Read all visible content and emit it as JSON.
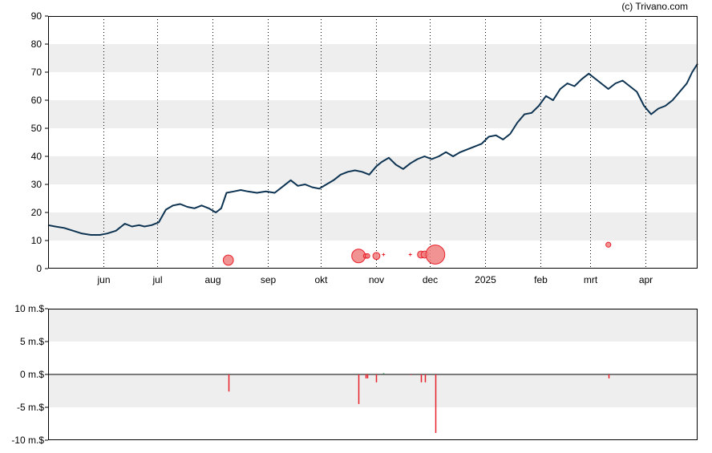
{
  "credit": "(c) Trivano.com",
  "colors": {
    "price_line": "#0d3352",
    "insider_sell": "#e8202a",
    "insider_buy": "#2e8b57",
    "band": "#eeeeee",
    "grid": "#000000",
    "axis": "#000000",
    "bubble_fill": "#f08080",
    "bubble_stroke": "#e8202a"
  },
  "chart_data": [
    {
      "type": "line",
      "title": "",
      "ylim": [
        0,
        90
      ],
      "y_ticks": [
        "0",
        "10",
        "20",
        "30",
        "40",
        "50",
        "60",
        "70",
        "80",
        "90"
      ],
      "x_start": "2024-05-01",
      "x_end": "2025-04-30",
      "month_ticks": [
        {
          "label": "jun",
          "date": "2024-06-01"
        },
        {
          "label": "jul",
          "date": "2024-07-01"
        },
        {
          "label": "aug",
          "date": "2024-08-01"
        },
        {
          "label": "sep",
          "date": "2024-09-01"
        },
        {
          "label": "okt",
          "date": "2024-10-01"
        },
        {
          "label": "nov",
          "date": "2024-11-01"
        },
        {
          "label": "dec",
          "date": "2024-12-01"
        },
        {
          "label": "2025",
          "date": "2025-01-01"
        },
        {
          "label": "feb",
          "date": "2025-02-01"
        },
        {
          "label": "mrt",
          "date": "2025-03-01"
        },
        {
          "label": "apr",
          "date": "2025-04-01"
        }
      ],
      "band_shading": true,
      "series": [
        {
          "x": [
            "2024-05-01",
            "2024-05-05",
            "2024-05-10",
            "2024-05-15",
            "2024-05-20",
            "2024-05-25",
            "2024-05-30",
            "2024-06-03",
            "2024-06-08",
            "2024-06-13",
            "2024-06-17",
            "2024-06-21",
            "2024-06-24",
            "2024-06-28",
            "2024-07-02",
            "2024-07-06",
            "2024-07-10",
            "2024-07-14",
            "2024-07-18",
            "2024-07-22",
            "2024-07-26",
            "2024-07-30",
            "2024-08-03",
            "2024-08-06",
            "2024-08-09",
            "2024-08-13",
            "2024-08-17",
            "2024-08-21",
            "2024-08-26",
            "2024-08-31",
            "2024-09-05",
            "2024-09-10",
            "2024-09-14",
            "2024-09-18",
            "2024-09-22",
            "2024-09-26",
            "2024-09-30",
            "2024-10-04",
            "2024-10-08",
            "2024-10-12",
            "2024-10-16",
            "2024-10-20",
            "2024-10-24",
            "2024-10-28",
            "2024-11-01",
            "2024-11-04",
            "2024-11-08",
            "2024-11-12",
            "2024-11-16",
            "2024-11-20",
            "2024-11-24",
            "2024-11-28",
            "2024-12-02",
            "2024-12-06",
            "2024-12-10",
            "2024-12-14",
            "2024-12-18",
            "2024-12-22",
            "2024-12-26",
            "2024-12-30",
            "2025-01-03",
            "2025-01-07",
            "2025-01-11",
            "2025-01-15",
            "2025-01-19",
            "2025-01-23",
            "2025-01-27",
            "2025-01-31",
            "2025-02-04",
            "2025-02-08",
            "2025-02-12",
            "2025-02-16",
            "2025-02-20",
            "2025-02-24",
            "2025-02-28",
            "2025-03-03",
            "2025-03-07",
            "2025-03-11",
            "2025-03-15",
            "2025-03-19",
            "2025-03-23",
            "2025-03-27",
            "2025-03-31",
            "2025-04-04",
            "2025-04-08",
            "2025-04-12",
            "2025-04-16",
            "2025-04-20",
            "2025-04-24",
            "2025-04-27",
            "2025-04-30"
          ],
          "y": [
            15.5,
            15,
            14.5,
            13.5,
            12.5,
            12,
            12,
            12.5,
            13.5,
            16,
            15,
            15.5,
            15,
            15.5,
            16.5,
            21,
            22.5,
            23,
            22,
            21.5,
            22.5,
            21.5,
            20,
            21.5,
            27,
            27.5,
            28,
            27.5,
            27,
            27.5,
            27,
            29.5,
            31.5,
            29.5,
            30,
            29,
            28.5,
            30,
            31.5,
            33.5,
            34.5,
            35,
            34.5,
            33.5,
            36.5,
            38,
            39.5,
            37,
            35.5,
            37.5,
            39,
            40,
            39,
            40,
            41.5,
            40,
            41.5,
            42.5,
            43.5,
            44.5,
            47,
            47.5,
            46,
            48,
            52,
            55,
            55.5,
            58,
            61.5,
            60,
            64,
            66,
            65,
            67.5,
            69.5,
            68,
            66,
            64,
            66,
            67,
            65,
            63,
            58,
            55,
            57,
            58,
            60,
            63,
            66,
            70,
            73
          ]
        }
      ],
      "bubbles": [
        {
          "x": "2024-08-10",
          "y": 3,
          "value": 2.5
        },
        {
          "x": "2024-10-22",
          "y": 4.5,
          "value": 4.5
        },
        {
          "x": "2024-10-26",
          "y": 4.5,
          "value": 0.5
        },
        {
          "x": "2024-10-27",
          "y": 4.5,
          "value": 0.5
        },
        {
          "x": "2024-11-01",
          "y": 4.5,
          "value": 1.2
        },
        {
          "x": "2024-11-05",
          "y": 5,
          "value": 0.1
        },
        {
          "x": "2024-11-20",
          "y": 5,
          "value": 0.1
        },
        {
          "x": "2024-11-26",
          "y": 5,
          "value": 1.2
        },
        {
          "x": "2024-11-28",
          "y": 5,
          "value": 1.2
        },
        {
          "x": "2024-12-04",
          "y": 5,
          "value": 8.8
        },
        {
          "x": "2025-03-11",
          "y": 8.5,
          "value": 0.6
        }
      ]
    },
    {
      "type": "bar",
      "title": "",
      "ylim": [
        -10,
        10
      ],
      "y_ticks": [
        "10 m.$",
        "5 m.$",
        "0 m.$",
        "-5 m.$",
        "-10 m.$"
      ],
      "series": [
        {
          "x": [
            "2024-08-10",
            "2024-10-22",
            "2024-10-26",
            "2024-10-27",
            "2024-11-01",
            "2024-11-05",
            "2024-11-20",
            "2024-11-26",
            "2024-11-28",
            "2024-12-04",
            "2025-03-11"
          ],
          "values": [
            -2.6,
            -4.5,
            -0.6,
            -0.6,
            -1.2,
            0.2,
            -0.1,
            -1.2,
            -1.2,
            -8.9,
            -0.6
          ]
        }
      ]
    }
  ]
}
